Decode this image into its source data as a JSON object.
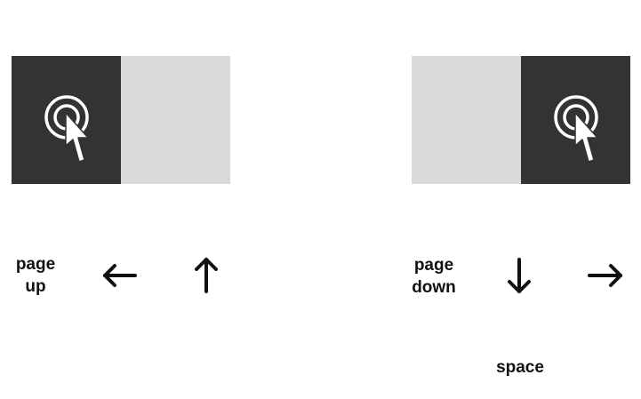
{
  "panels": {
    "left": {
      "active_side": "left",
      "icon": "click-cursor-icon"
    },
    "right": {
      "active_side": "right",
      "icon": "click-cursor-icon"
    }
  },
  "colors": {
    "active": "#333333",
    "inactive": "#d9d9d9",
    "icon": "#ffffff",
    "text": "#111111"
  },
  "left_keys": {
    "page_up_line1": "page",
    "page_up_line2": "up",
    "arrow_left_icon": "left-arrow-icon",
    "arrow_up_icon": "up-arrow-icon"
  },
  "right_keys": {
    "page_down_line1": "page",
    "page_down_line2": "down",
    "arrow_down_icon": "down-arrow-icon",
    "arrow_right_icon": "right-arrow-icon",
    "space_label": "space"
  }
}
